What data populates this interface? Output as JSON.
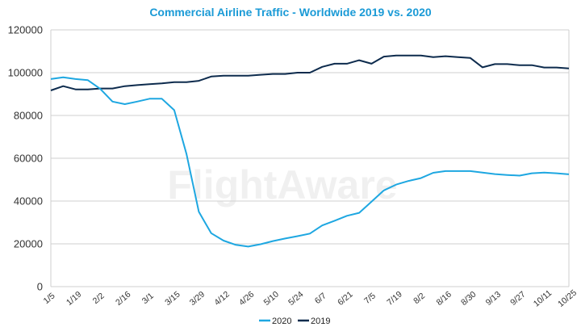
{
  "chart_data": {
    "type": "line",
    "title": "Commercial Airline Traffic - Worldwide 2019 vs. 2020",
    "title_color": "#1a9ad6",
    "watermark": "FlightAware",
    "xlabel": "",
    "ylabel": "",
    "ylim": [
      0,
      120000
    ],
    "yticks": [
      0,
      20000,
      40000,
      60000,
      80000,
      100000,
      120000
    ],
    "grid": true,
    "legend_position": "bottom-center",
    "x": [
      "1/5",
      "1/12",
      "1/19",
      "1/26",
      "2/2",
      "2/9",
      "2/16",
      "2/23",
      "3/1",
      "3/8",
      "3/15",
      "3/22",
      "3/29",
      "4/5",
      "4/12",
      "4/19",
      "4/26",
      "5/3",
      "5/10",
      "5/17",
      "5/24",
      "5/31",
      "6/7",
      "6/14",
      "6/21",
      "6/28",
      "7/5",
      "7/12",
      "7/19",
      "7/26",
      "8/2",
      "8/9",
      "8/16",
      "8/23",
      "8/30",
      "9/6",
      "9/13",
      "9/20",
      "9/27",
      "10/4",
      "10/11",
      "10/18",
      "10/25"
    ],
    "xtick_labels": [
      "1/5",
      "1/19",
      "2/2",
      "2/16",
      "3/1",
      "3/15",
      "3/29",
      "4/12",
      "4/26",
      "5/10",
      "5/24",
      "6/7",
      "6/21",
      "7/5",
      "7/19",
      "8/2",
      "8/16",
      "8/30",
      "9/13",
      "9/27",
      "10/11",
      "10/25"
    ],
    "series": [
      {
        "name": "2020",
        "color": "#1ea7e1",
        "values": [
          97000,
          97800,
          97000,
          96500,
          92500,
          86500,
          85300,
          86500,
          87800,
          87800,
          82500,
          62000,
          35000,
          25000,
          21500,
          19500,
          18700,
          19800,
          21300,
          22500,
          23600,
          24800,
          28600,
          30800,
          33100,
          34500,
          39700,
          45000,
          47700,
          49400,
          50700,
          53200,
          54000,
          54000,
          54000,
          53300,
          52600,
          52200,
          51900,
          53000,
          53300,
          53000,
          52500
        ]
      },
      {
        "name": "2019",
        "color": "#0d2b4d",
        "values": [
          91700,
          93700,
          92200,
          92200,
          92600,
          92600,
          93700,
          94200,
          94600,
          95000,
          95600,
          95600,
          96200,
          98200,
          98600,
          98600,
          98600,
          99000,
          99400,
          99400,
          100000,
          100000,
          102700,
          104200,
          104200,
          105800,
          104200,
          107500,
          108000,
          108000,
          108000,
          107300,
          107700,
          107300,
          106900,
          102500,
          104000,
          104000,
          103500,
          103500,
          102400,
          102400,
          102000
        ]
      }
    ]
  }
}
